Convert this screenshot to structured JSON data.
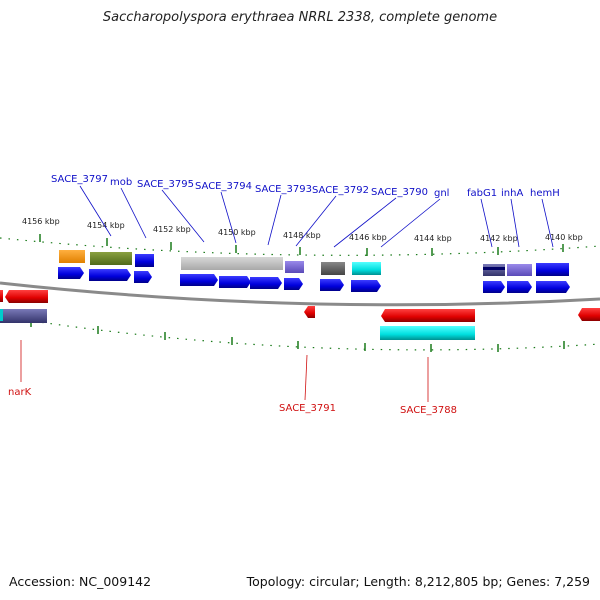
{
  "title": "Saccharopolyspora erythraea NRRL 2338, complete genome",
  "footer": {
    "accession": "Accession: NC_009142",
    "topology": "Topology: circular; Length: 8,212,805 bp; Genes: 7,259"
  },
  "kbp_ticks": [
    "4156 kbp",
    "4154 kbp",
    "4152 kbp",
    "4150 kbp",
    "4148 kbp",
    "4146 kbp",
    "4144 kbp",
    "4142 kbp",
    "4140 kbp"
  ],
  "genes_top": [
    "SACE_3797",
    "mob",
    "SACE_3795",
    "SACE_3794",
    "SACE_3793",
    "SACE_3792",
    "SACE_3790",
    "gnl",
    "fabG1",
    "inhA",
    "hemH"
  ],
  "genes_bottom": [
    "narK",
    "SACE_3791",
    "SACE_3788"
  ],
  "colors": {
    "top_label": "#1010c8",
    "bottom_label": "#d01010",
    "tick": "#1a7a1a",
    "cds_forward": "#0a0ae0",
    "cds_reverse": "#e00a0a",
    "backbone": "#888888"
  }
}
